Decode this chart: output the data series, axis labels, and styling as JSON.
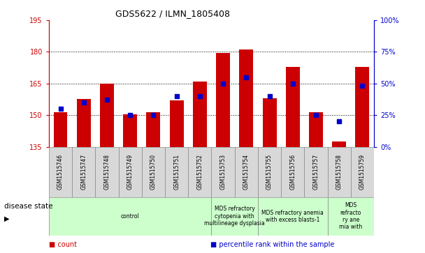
{
  "title": "GDS5622 / ILMN_1805408",
  "samples": [
    "GSM1515746",
    "GSM1515747",
    "GSM1515748",
    "GSM1515749",
    "GSM1515750",
    "GSM1515751",
    "GSM1515752",
    "GSM1515753",
    "GSM1515754",
    "GSM1515755",
    "GSM1515756",
    "GSM1515757",
    "GSM1515758",
    "GSM1515759"
  ],
  "counts": [
    151.5,
    157.5,
    165.0,
    150.5,
    151.5,
    157.0,
    166.0,
    179.5,
    181.0,
    158.0,
    173.0,
    151.5,
    137.5,
    173.0
  ],
  "percentiles": [
    30,
    35,
    37,
    25,
    25,
    40,
    40,
    50,
    55,
    40,
    50,
    25,
    20,
    48
  ],
  "ylim_left": [
    135,
    195
  ],
  "ylim_right": [
    0,
    100
  ],
  "yticks_left": [
    135,
    150,
    165,
    180,
    195
  ],
  "yticks_right": [
    0,
    25,
    50,
    75,
    100
  ],
  "bar_color": "#cc0000",
  "percentile_color": "#0000cc",
  "axis_color_left": "#cc0000",
  "axis_color_right": "#0000cc",
  "gridlines": [
    150,
    165,
    180
  ],
  "disease_groups": [
    {
      "label": "control",
      "start": 0,
      "end": 7
    },
    {
      "label": "MDS refractory\ncytopenia with\nmultilineage dysplasia",
      "start": 7,
      "end": 9
    },
    {
      "label": "MDS refractory anemia\nwith excess blasts-1",
      "start": 9,
      "end": 12
    },
    {
      "label": "MDS\nrefracto\nry ane\nmia with",
      "start": 12,
      "end": 14
    }
  ],
  "disease_group_color": "#ccffcc",
  "sample_box_color": "#d8d8d8",
  "xlabel_disease": "disease state",
  "legend_items": [
    {
      "label": "count",
      "color": "#cc0000"
    },
    {
      "label": "percentile rank within the sample",
      "color": "#0000cc"
    }
  ],
  "bar_width": 0.6,
  "title_fontsize": 9,
  "tick_fontsize": 7,
  "sample_fontsize": 5.5,
  "disease_fontsize": 5.5,
  "legend_fontsize": 7
}
